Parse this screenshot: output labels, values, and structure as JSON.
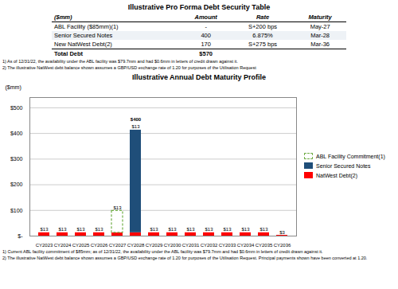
{
  "chart_data": [
    {
      "type": "table",
      "title": "Illustrative Pro Forma Debt Security Table",
      "columns": [
        "($mm)",
        "Amount",
        "Rate",
        "Maturity"
      ],
      "rows": [
        [
          "ABL Facility ($85mm)(1)",
          "-",
          "S+200 bps",
          "May-27"
        ],
        [
          "Senior Secured Notes",
          "400",
          "6.875%",
          "Mar-28"
        ],
        [
          "New NatWest Debt(2)",
          "170",
          "S+275 bps",
          "Mar-36"
        ],
        [
          "Total Debt",
          "$570"
        ]
      ],
      "footnotes": [
        "1)   As of 12/31/22, the availability under the ABL facility was $79.7mm and had $0.6mm in letters of credit drawn  against it.",
        "2)   The  illustrative NatWest debt balance shown  assumes a GBP/USD exchange rate of 1.20 for purposes of the Utilisation Request"
      ]
    },
    {
      "type": "bar",
      "title": "Illustrative Annual Debt Maturity Profile",
      "ylabel": "($mm)",
      "categories": [
        "CY2023",
        "CY2024",
        "CY2025",
        "CY2026",
        "CY2027",
        "CY2028",
        "CY2029",
        "CY2030",
        "CY2031",
        "CY2032",
        "CY2033",
        "CY2034",
        "CY2035",
        "CY2036"
      ],
      "stacked": true,
      "series": [
        {
          "name": "ABL Facility Commitment(1)",
          "color": "#70AD47",
          "line_style": "dashed",
          "values": [
            0,
            0,
            0,
            0,
            85,
            0,
            0,
            0,
            0,
            0,
            0,
            0,
            0,
            0
          ]
        },
        {
          "name": "Senior Secured Notes",
          "color": "#1F4E79",
          "data_labels": true,
          "values": [
            0,
            0,
            0,
            0,
            0,
            400,
            0,
            0,
            0,
            0,
            0,
            0,
            0,
            0
          ],
          "value_labels": [
            null,
            null,
            null,
            null,
            null,
            "$400",
            null,
            null,
            null,
            null,
            null,
            null,
            null,
            null
          ]
        },
        {
          "name": "NatWest Debt(2)",
          "color": "#FF0000",
          "data_labels": true,
          "values": [
            13,
            13,
            13,
            13,
            13,
            13,
            13,
            13,
            13,
            13,
            13,
            13,
            13,
            3
          ],
          "value_labels": [
            "$13",
            "$13",
            "$13",
            "$13",
            "$13",
            "$13",
            "$13",
            "$13",
            "$13",
            "$13",
            "$13",
            "$13",
            "$13",
            "$3"
          ]
        }
      ],
      "ylim": [
        0,
        540
      ],
      "yticks": [
        {
          "value": 0,
          "label": "$-"
        },
        {
          "value": 100,
          "label": "$100"
        },
        {
          "value": 200,
          "label": "$200"
        },
        {
          "value": 300,
          "label": "$300"
        },
        {
          "value": 400,
          "label": "$400"
        },
        {
          "value": 500,
          "label": "$500"
        }
      ],
      "grid": true,
      "legend": "right",
      "footnotes": [
        "1)   Current ABL facility commitment of $85mm; as of 12/31/22, the availability under the ABL facility was $79.7mm and had $0.6mm in letters of credit drawn  against it.",
        "2)   The  illustrative NatWest debt balance shown  assumes a GBP/USD exchange rate of 1.20 for purposes of the Utilisation Request. Principal payments shown have been converted at 1.20."
      ]
    }
  ]
}
